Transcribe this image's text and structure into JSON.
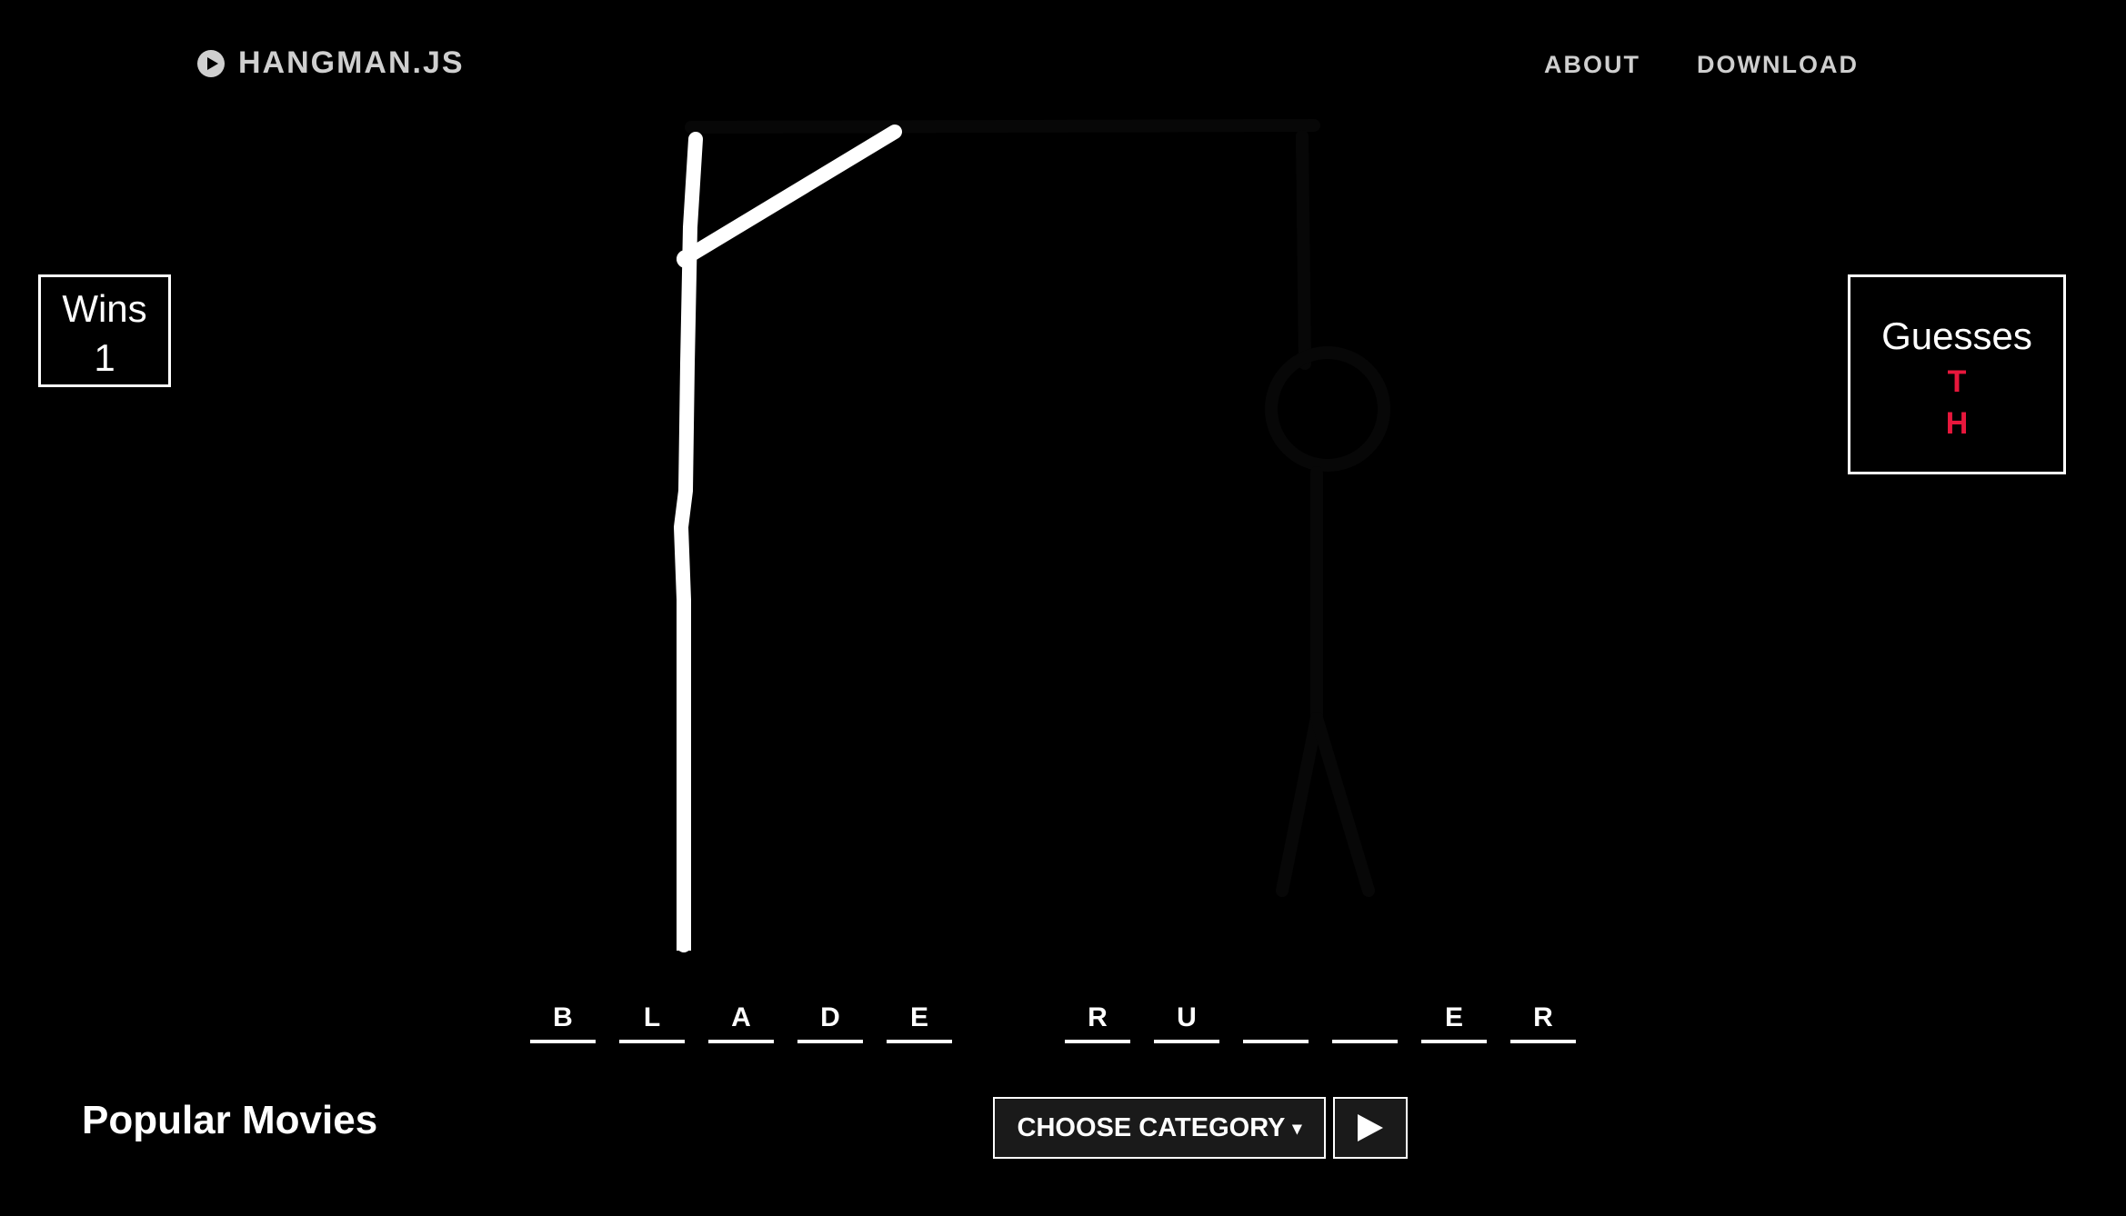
{
  "header": {
    "brand": "HANGMAN.JS",
    "nav": [
      {
        "label": "ABOUT"
      },
      {
        "label": "DOWNLOAD"
      }
    ]
  },
  "wins": {
    "label": "Wins",
    "value": "1"
  },
  "guesses": {
    "label": "Guesses",
    "letters": [
      "T",
      "H"
    ],
    "color": "#e8173c"
  },
  "word": {
    "slots": [
      "B",
      "L",
      "A",
      "D",
      "E",
      " ",
      "R",
      "U",
      "",
      "",
      "E",
      "R"
    ]
  },
  "category": {
    "title": "Popular Movies",
    "choose_label": "CHOOSE CATEGORY",
    "caret_icon": "caret-down-icon",
    "play_icon": "play-icon"
  }
}
